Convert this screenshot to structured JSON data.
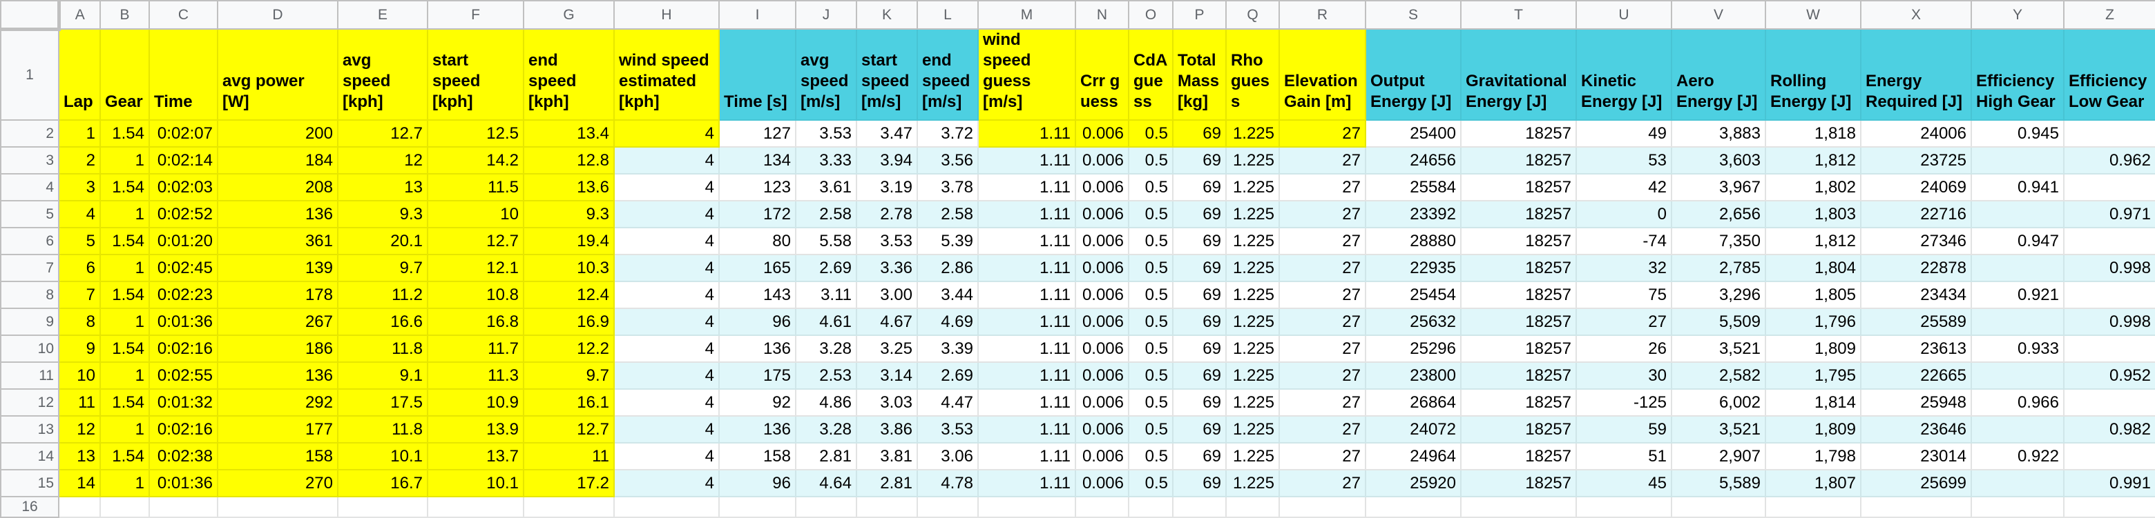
{
  "colors": {
    "input_yellow": "#ffff00",
    "header_cyan": "#4dd0e1",
    "band_light_cyan": "#e0f7fa",
    "band_white": "#ffffff"
  },
  "column_letters": [
    "A",
    "B",
    "C",
    "D",
    "E",
    "F",
    "G",
    "H",
    "I",
    "J",
    "K",
    "L",
    "M",
    "N",
    "O",
    "P",
    "Q",
    "R",
    "S",
    "T",
    "U",
    "V",
    "W",
    "X",
    "Y",
    "Z"
  ],
  "row_numbers": [
    "1",
    "2",
    "3",
    "4",
    "5",
    "6",
    "7",
    "8",
    "9",
    "10",
    "11",
    "12",
    "13",
    "14",
    "15",
    "16"
  ],
  "headers": [
    "Lap",
    "Gear",
    "Time",
    "avg power [W]",
    "avg speed [kph]",
    "start speed [kph]",
    "end speed [kph]",
    "wind speed estimated [kph]",
    "Time [s]",
    "avg speed [m/s]",
    "start speed [m/s]",
    "end speed [m/s]",
    "wind speed guess [m/s]",
    "Crr guess",
    "CdA guess",
    "Total Mass [kg]",
    "Rho guess",
    "Elevation Gain [m]",
    "Output Energy [J]",
    "Gravitational Energy [J]",
    "Kinetic Energy [J]",
    "Aero Energy [J]",
    "Rolling Energy [J]",
    "Energy Required [J]",
    "Efficiency High Gear",
    "Efficiency Low Gear"
  ],
  "rows": [
    [
      "1",
      "1.54",
      "0:02:07",
      "200",
      "12.7",
      "12.5",
      "13.4",
      "4",
      "127",
      "3.53",
      "3.47",
      "3.72",
      "1.11",
      "0.006",
      "0.5",
      "69",
      "1.225",
      "27",
      "25400",
      "18257",
      "49",
      "3,883",
      "1,818",
      "24006",
      "0.945",
      ""
    ],
    [
      "2",
      "1",
      "0:02:14",
      "184",
      "12",
      "14.2",
      "12.8",
      "4",
      "134",
      "3.33",
      "3.94",
      "3.56",
      "1.11",
      "0.006",
      "0.5",
      "69",
      "1.225",
      "27",
      "24656",
      "18257",
      "53",
      "3,603",
      "1,812",
      "23725",
      "",
      "0.962"
    ],
    [
      "3",
      "1.54",
      "0:02:03",
      "208",
      "13",
      "11.5",
      "13.6",
      "4",
      "123",
      "3.61",
      "3.19",
      "3.78",
      "1.11",
      "0.006",
      "0.5",
      "69",
      "1.225",
      "27",
      "25584",
      "18257",
      "42",
      "3,967",
      "1,802",
      "24069",
      "0.941",
      ""
    ],
    [
      "4",
      "1",
      "0:02:52",
      "136",
      "9.3",
      "10",
      "9.3",
      "4",
      "172",
      "2.58",
      "2.78",
      "2.58",
      "1.11",
      "0.006",
      "0.5",
      "69",
      "1.225",
      "27",
      "23392",
      "18257",
      "0",
      "2,656",
      "1,803",
      "22716",
      "",
      "0.971"
    ],
    [
      "5",
      "1.54",
      "0:01:20",
      "361",
      "20.1",
      "12.7",
      "19.4",
      "4",
      "80",
      "5.58",
      "3.53",
      "5.39",
      "1.11",
      "0.006",
      "0.5",
      "69",
      "1.225",
      "27",
      "28880",
      "18257",
      "-74",
      "7,350",
      "1,812",
      "27346",
      "0.947",
      ""
    ],
    [
      "6",
      "1",
      "0:02:45",
      "139",
      "9.7",
      "12.1",
      "10.3",
      "4",
      "165",
      "2.69",
      "3.36",
      "2.86",
      "1.11",
      "0.006",
      "0.5",
      "69",
      "1.225",
      "27",
      "22935",
      "18257",
      "32",
      "2,785",
      "1,804",
      "22878",
      "",
      "0.998"
    ],
    [
      "7",
      "1.54",
      "0:02:23",
      "178",
      "11.2",
      "10.8",
      "12.4",
      "4",
      "143",
      "3.11",
      "3.00",
      "3.44",
      "1.11",
      "0.006",
      "0.5",
      "69",
      "1.225",
      "27",
      "25454",
      "18257",
      "75",
      "3,296",
      "1,805",
      "23434",
      "0.921",
      ""
    ],
    [
      "8",
      "1",
      "0:01:36",
      "267",
      "16.6",
      "16.8",
      "16.9",
      "4",
      "96",
      "4.61",
      "4.67",
      "4.69",
      "1.11",
      "0.006",
      "0.5",
      "69",
      "1.225",
      "27",
      "25632",
      "18257",
      "27",
      "5,509",
      "1,796",
      "25589",
      "",
      "0.998"
    ],
    [
      "9",
      "1.54",
      "0:02:16",
      "186",
      "11.8",
      "11.7",
      "12.2",
      "4",
      "136",
      "3.28",
      "3.25",
      "3.39",
      "1.11",
      "0.006",
      "0.5",
      "69",
      "1.225",
      "27",
      "25296",
      "18257",
      "26",
      "3,521",
      "1,809",
      "23613",
      "0.933",
      ""
    ],
    [
      "10",
      "1",
      "0:02:55",
      "136",
      "9.1",
      "11.3",
      "9.7",
      "4",
      "175",
      "2.53",
      "3.14",
      "2.69",
      "1.11",
      "0.006",
      "0.5",
      "69",
      "1.225",
      "27",
      "23800",
      "18257",
      "30",
      "2,582",
      "1,795",
      "22665",
      "",
      "0.952"
    ],
    [
      "11",
      "1.54",
      "0:01:32",
      "292",
      "17.5",
      "10.9",
      "16.1",
      "4",
      "92",
      "4.86",
      "3.03",
      "4.47",
      "1.11",
      "0.006",
      "0.5",
      "69",
      "1.225",
      "27",
      "26864",
      "18257",
      "-125",
      "6,002",
      "1,814",
      "25948",
      "0.966",
      ""
    ],
    [
      "12",
      "1",
      "0:02:16",
      "177",
      "11.8",
      "13.9",
      "12.7",
      "4",
      "136",
      "3.28",
      "3.86",
      "3.53",
      "1.11",
      "0.006",
      "0.5",
      "69",
      "1.225",
      "27",
      "24072",
      "18257",
      "59",
      "3,521",
      "1,809",
      "23646",
      "",
      "0.982"
    ],
    [
      "13",
      "1.54",
      "0:02:38",
      "158",
      "10.1",
      "13.7",
      "11",
      "4",
      "158",
      "2.81",
      "3.81",
      "3.06",
      "1.11",
      "0.006",
      "0.5",
      "69",
      "1.225",
      "27",
      "24964",
      "18257",
      "51",
      "2,907",
      "1,798",
      "23014",
      "0.922",
      ""
    ],
    [
      "14",
      "1",
      "0:01:36",
      "270",
      "16.7",
      "10.1",
      "17.2",
      "4",
      "96",
      "4.64",
      "2.81",
      "4.78",
      "1.11",
      "0.006",
      "0.5",
      "69",
      "1.225",
      "27",
      "25920",
      "18257",
      "45",
      "5,589",
      "1,807",
      "25699",
      "",
      "0.991"
    ]
  ]
}
